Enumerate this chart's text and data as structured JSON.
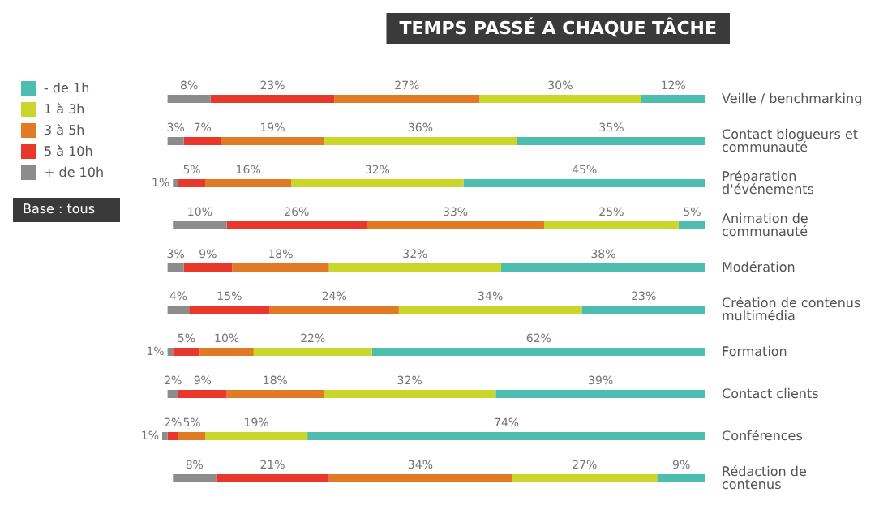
{
  "chart_data": {
    "type": "bar",
    "orientation": "horizontal",
    "stacked": true,
    "title": "TEMPS PASSÉ A CHAQUE TÂCHE",
    "categories": [
      "Veille / benchmarking",
      "Contact blogueurs et communauté",
      "Préparation d'événements",
      "Animation de communauté",
      "Modération",
      "Création de contenus multimédia",
      "Formation",
      "Contact clients",
      "Conférences",
      "Rédaction de contenus"
    ],
    "series": [
      {
        "name": "- de 1h",
        "color": "#4dbdaf",
        "values": [
          12,
          35,
          45,
          5,
          38,
          23,
          62,
          39,
          74,
          9
        ],
        "value_labels": [
          "12%",
          "35%",
          "45%",
          "5%",
          "38%",
          "23%",
          "62%",
          "39%",
          "74%",
          "9%"
        ]
      },
      {
        "name": "1 à 3h",
        "color": "#c9d62a",
        "values": [
          30,
          36,
          32,
          25,
          32,
          34,
          22,
          32,
          19,
          27
        ],
        "value_labels": [
          "30%",
          "36%",
          "32%",
          "25%",
          "32%",
          "34%",
          "22%",
          "32%",
          "19%",
          "27%"
        ]
      },
      {
        "name": "3 à 5h",
        "color": "#e07a24",
        "values": [
          27,
          19,
          16,
          33,
          18,
          24,
          10,
          18,
          5,
          34
        ],
        "value_labels": [
          "27%",
          "19%",
          "16%",
          "33%",
          "18%",
          "24%",
          "10%",
          "18%",
          "5%",
          "34%"
        ]
      },
      {
        "name": "5 à 10h",
        "color": "#e8382c",
        "values": [
          23,
          7,
          5,
          26,
          9,
          15,
          5,
          9,
          2,
          21
        ],
        "value_labels": [
          "23%",
          "7%",
          "5%",
          "26%",
          "9%",
          "15%",
          "5%",
          "9%",
          "2%",
          "21%"
        ]
      },
      {
        "name": "+ de 10h",
        "color": "#8c8c8c",
        "values": [
          8,
          3,
          1,
          10,
          3,
          4,
          1,
          2,
          1,
          8
        ],
        "value_labels": [
          "8%",
          "3%",
          "1%",
          "10%",
          "3%",
          "4%",
          "1%",
          "2%",
          "1%",
          "8%"
        ]
      }
    ],
    "annotations": [
      "Base : tous"
    ],
    "legend": "top left",
    "tick_labels": "y",
    "grid": false
  }
}
